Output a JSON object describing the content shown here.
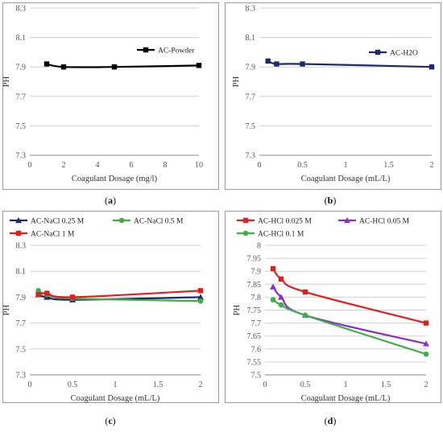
{
  "chart_data": [
    {
      "id": "a",
      "type": "line",
      "caption_prefix": "(",
      "caption_letter": "a",
      "caption_suffix": ")",
      "xlabel": "Coagulant Dosage (mg/l)",
      "ylabel": "PH",
      "xlim": [
        0,
        10
      ],
      "ylim": [
        7.3,
        8.3
      ],
      "xticks": [
        0,
        2,
        4,
        6,
        8,
        10
      ],
      "yticks": [
        7.3,
        7.5,
        7.7,
        7.9,
        8.1,
        8.3
      ],
      "xtick_labels": [
        "0",
        "2",
        "4",
        "6",
        "8",
        "10"
      ],
      "ytick_labels": [
        "7.3",
        "7.5",
        "7.7",
        "7.9",
        "8.1",
        "8.3"
      ],
      "grid": true,
      "legend_position": "top-right",
      "series": [
        {
          "name": "AC-Powder",
          "color": "#000000",
          "marker": "square",
          "smooth": true,
          "x": [
            1,
            2,
            5,
            10
          ],
          "y": [
            7.92,
            7.9,
            7.9,
            7.91
          ]
        }
      ]
    },
    {
      "id": "b",
      "type": "line",
      "caption_prefix": "(",
      "caption_letter": "b",
      "caption_suffix": ")",
      "xlabel": "Coagulant Dosage (mL/L)",
      "ylabel": "PH",
      "xlim": [
        0,
        2
      ],
      "ylim": [
        7.3,
        8.3
      ],
      "xticks": [
        0,
        0.5,
        1,
        1.5,
        2
      ],
      "yticks": [
        7.3,
        7.5,
        7.7,
        7.9,
        8.1,
        8.3
      ],
      "xtick_labels": [
        "0",
        "0.5",
        "1",
        "1.5",
        "2"
      ],
      "ytick_labels": [
        "7.3",
        "7.5",
        "7.7",
        "7.9",
        "8.1",
        "8.3"
      ],
      "grid": true,
      "legend_position": "top-right",
      "series": [
        {
          "name": "AC-H2O",
          "color": "#1f2a6b",
          "marker": "square",
          "smooth": true,
          "x": [
            0.1,
            0.2,
            0.5,
            2
          ],
          "y": [
            7.94,
            7.92,
            7.92,
            7.9
          ]
        }
      ]
    },
    {
      "id": "c",
      "type": "line",
      "caption_prefix": "(",
      "caption_letter": "c",
      "caption_suffix": ")",
      "xlabel": "Coagulant Dosage (mL/L)",
      "ylabel": "PH",
      "xlim": [
        0,
        2
      ],
      "ylim": [
        7.3,
        8.3
      ],
      "xticks": [
        0,
        0.5,
        1,
        1.5,
        2
      ],
      "yticks": [
        7.3,
        7.5,
        7.7,
        7.9,
        8.1,
        8.3
      ],
      "xtick_labels": [
        "0",
        "0.5",
        "1",
        "1.5",
        "2"
      ],
      "ytick_labels": [
        "7.3",
        "7.5",
        "7.7",
        "7.9",
        "8.1",
        "8.3"
      ],
      "grid": true,
      "legend_position": "top",
      "series": [
        {
          "name": "AC-NaCl 0.25 M",
          "color": "#1f2a6b",
          "marker": "triangle",
          "smooth": true,
          "x": [
            0.1,
            0.2,
            0.5,
            2
          ],
          "y": [
            7.92,
            7.9,
            7.88,
            7.9
          ]
        },
        {
          "name": "AC-NaCl 0.5 M",
          "color": "#3cb043",
          "marker": "circle",
          "smooth": true,
          "x": [
            0.1,
            0.2,
            0.5,
            2
          ],
          "y": [
            7.95,
            7.92,
            7.89,
            7.87
          ]
        },
        {
          "name": "AC-NaCl 1 M",
          "color": "#e0201b",
          "marker": "square",
          "smooth": true,
          "x": [
            0.1,
            0.2,
            0.5,
            2
          ],
          "y": [
            7.92,
            7.93,
            7.9,
            7.95
          ]
        }
      ]
    },
    {
      "id": "d",
      "type": "line",
      "caption_prefix": "(",
      "caption_letter": "d",
      "caption_suffix": ")",
      "xlabel": "Coagulant Dosage (mL/L)",
      "ylabel": "PH",
      "xlim": [
        0,
        2
      ],
      "ylim": [
        7.5,
        8
      ],
      "xticks": [
        0,
        0.5,
        1,
        1.5,
        2
      ],
      "yticks": [
        7.5,
        7.55,
        7.6,
        7.65,
        7.7,
        7.75,
        7.8,
        7.85,
        7.9,
        7.95,
        8
      ],
      "xtick_labels": [
        "0",
        "0.5",
        "1",
        "1.5",
        "2"
      ],
      "ytick_labels": [
        "7.5",
        "7.55",
        "7.6",
        "7.65",
        "7.7",
        "7.75",
        "7.8",
        "7.85",
        "7.9",
        "7.95",
        "8"
      ],
      "grid": true,
      "legend_position": "top",
      "series": [
        {
          "name": "AC-HCl 0.025 M",
          "color": "#e0201b",
          "marker": "square",
          "smooth": true,
          "x": [
            0.1,
            0.2,
            0.5,
            2
          ],
          "y": [
            7.91,
            7.87,
            7.82,
            7.7
          ]
        },
        {
          "name": "AC-HCl 0.05 M",
          "color": "#8b2fc9",
          "marker": "triangle",
          "smooth": true,
          "x": [
            0.1,
            0.2,
            0.5,
            2
          ],
          "y": [
            7.84,
            7.8,
            7.73,
            7.62
          ]
        },
        {
          "name": "AC-HCl 0.1 M",
          "color": "#3cb043",
          "marker": "circle",
          "smooth": true,
          "x": [
            0.1,
            0.2,
            0.5,
            2
          ],
          "y": [
            7.79,
            7.77,
            7.73,
            7.58
          ]
        }
      ]
    }
  ]
}
